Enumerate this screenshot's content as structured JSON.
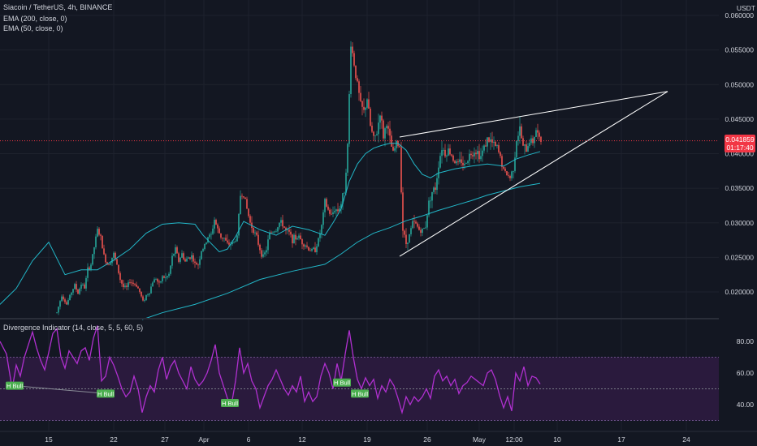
{
  "header": {
    "symbol_line": "Siacoin / TetherUS, 4h, BINANCE",
    "ema200_label": "EMA (200, close, 0)",
    "ema50_label": "EMA (50, close, 0)",
    "currency": "USDT"
  },
  "price_tag": {
    "value": "0.041859",
    "countdown": "01:17:40"
  },
  "oscillator": {
    "label": "Divergence Indicator (14, close, 5, 5, 60, 5)",
    "levels": [
      "80.00",
      "60.00",
      "40.00"
    ],
    "band": [
      30,
      70
    ],
    "mid_line": 50,
    "signal_text": "H Bull"
  },
  "colors": {
    "background": "#131722",
    "up": "#26a69a",
    "down": "#ef5350",
    "ema": "#22b7c8",
    "oscillator": "#b030d0",
    "band_fill": "#2a1a3d",
    "bull_label": "#4caf50",
    "trendline": "#ffffff",
    "price_tag": "#f23645"
  },
  "chart_data": {
    "type": "candlestick",
    "pair": "Siacoin / TetherUS",
    "interval": "4h",
    "exchange": "BINANCE",
    "x_ticks": [
      "15",
      "22",
      "27",
      "Apr",
      "6",
      "12",
      "19",
      "26",
      "May",
      "12:00",
      "10",
      "17",
      "24"
    ],
    "y_ticks": [
      "0.060000",
      "0.055000",
      "0.050000",
      "0.045000",
      "0.040000",
      "0.035000",
      "0.030000",
      "0.025000",
      "0.020000"
    ],
    "y_range": [
      0.0165,
      0.0625
    ],
    "current_price": 0.041859,
    "ema50": [
      [
        0,
        0.0182
      ],
      [
        20,
        0.0205
      ],
      [
        40,
        0.0245
      ],
      [
        60,
        0.0272
      ],
      [
        80,
        0.0225
      ],
      [
        100,
        0.0232
      ],
      [
        120,
        0.0232
      ],
      [
        140,
        0.0246
      ],
      [
        160,
        0.0262
      ],
      [
        180,
        0.0285
      ],
      [
        200,
        0.0298
      ],
      [
        220,
        0.03
      ],
      [
        240,
        0.0298
      ],
      [
        250,
        0.0282
      ],
      [
        260,
        0.027
      ],
      [
        270,
        0.0258
      ],
      [
        280,
        0.0262
      ],
      [
        290,
        0.028
      ],
      [
        300,
        0.0302
      ],
      [
        320,
        0.029
      ],
      [
        340,
        0.0282
      ],
      [
        360,
        0.0295
      ],
      [
        380,
        0.029
      ],
      [
        400,
        0.0282
      ],
      [
        410,
        0.03
      ],
      [
        420,
        0.032
      ],
      [
        430,
        0.036
      ],
      [
        440,
        0.0385
      ],
      [
        450,
        0.04
      ],
      [
        460,
        0.0408
      ],
      [
        470,
        0.0412
      ],
      [
        480,
        0.0415
      ],
      [
        490,
        0.0415
      ],
      [
        500,
        0.0405
      ],
      [
        510,
        0.0385
      ],
      [
        520,
        0.037
      ],
      [
        530,
        0.0365
      ],
      [
        540,
        0.0372
      ],
      [
        560,
        0.0378
      ],
      [
        580,
        0.0382
      ],
      [
        600,
        0.0385
      ],
      [
        620,
        0.0382
      ],
      [
        635,
        0.0392
      ],
      [
        650,
        0.0398
      ],
      [
        665,
        0.0403
      ]
    ],
    "ema200": [
      [
        175,
        0.016
      ],
      [
        200,
        0.017
      ],
      [
        240,
        0.0182
      ],
      [
        280,
        0.0198
      ],
      [
        320,
        0.0218
      ],
      [
        360,
        0.023
      ],
      [
        400,
        0.024
      ],
      [
        420,
        0.0255
      ],
      [
        440,
        0.0272
      ],
      [
        460,
        0.0285
      ],
      [
        480,
        0.0293
      ],
      [
        500,
        0.0303
      ],
      [
        520,
        0.031
      ],
      [
        540,
        0.0318
      ],
      [
        560,
        0.0325
      ],
      [
        580,
        0.0332
      ],
      [
        600,
        0.034
      ],
      [
        620,
        0.0346
      ],
      [
        640,
        0.0352
      ],
      [
        665,
        0.0357
      ]
    ],
    "trendlines": [
      {
        "from": [
          492,
          0.0424
        ],
        "to": [
          822,
          0.049
        ]
      },
      {
        "from": [
          492,
          0.02515
        ],
        "to": [
          822,
          0.049
        ]
      }
    ],
    "divergence_series": [
      [
        0,
        80
      ],
      [
        8,
        72
      ],
      [
        15,
        50
      ],
      [
        20,
        65
      ],
      [
        25,
        58
      ],
      [
        30,
        70
      ],
      [
        35,
        78
      ],
      [
        40,
        86
      ],
      [
        45,
        76
      ],
      [
        50,
        68
      ],
      [
        55,
        62
      ],
      [
        60,
        73
      ],
      [
        65,
        85
      ],
      [
        70,
        88
      ],
      [
        75,
        70
      ],
      [
        80,
        63
      ],
      [
        85,
        74
      ],
      [
        90,
        70
      ],
      [
        95,
        66
      ],
      [
        100,
        74
      ],
      [
        105,
        76
      ],
      [
        110,
        68
      ],
      [
        115,
        82
      ],
      [
        120,
        90
      ],
      [
        125,
        55
      ],
      [
        130,
        58
      ],
      [
        135,
        70
      ],
      [
        140,
        65
      ],
      [
        145,
        58
      ],
      [
        150,
        50
      ],
      [
        155,
        45
      ],
      [
        160,
        48
      ],
      [
        165,
        58
      ],
      [
        170,
        50
      ],
      [
        175,
        35
      ],
      [
        180,
        45
      ],
      [
        185,
        52
      ],
      [
        190,
        48
      ],
      [
        195,
        62
      ],
      [
        200,
        70
      ],
      [
        205,
        56
      ],
      [
        210,
        64
      ],
      [
        215,
        68
      ],
      [
        220,
        60
      ],
      [
        225,
        55
      ],
      [
        230,
        50
      ],
      [
        235,
        64
      ],
      [
        240,
        56
      ],
      [
        245,
        52
      ],
      [
        250,
        55
      ],
      [
        255,
        60
      ],
      [
        260,
        68
      ],
      [
        265,
        78
      ],
      [
        270,
        60
      ],
      [
        275,
        52
      ],
      [
        280,
        44
      ],
      [
        285,
        40
      ],
      [
        290,
        55
      ],
      [
        295,
        76
      ],
      [
        300,
        60
      ],
      [
        305,
        66
      ],
      [
        310,
        55
      ],
      [
        315,
        50
      ],
      [
        320,
        38
      ],
      [
        325,
        45
      ],
      [
        330,
        52
      ],
      [
        335,
        56
      ],
      [
        340,
        62
      ],
      [
        345,
        56
      ],
      [
        350,
        50
      ],
      [
        355,
        46
      ],
      [
        360,
        52
      ],
      [
        365,
        48
      ],
      [
        370,
        58
      ],
      [
        375,
        42
      ],
      [
        380,
        48
      ],
      [
        385,
        42
      ],
      [
        390,
        45
      ],
      [
        395,
        58
      ],
      [
        400,
        66
      ],
      [
        405,
        60
      ],
      [
        410,
        50
      ],
      [
        415,
        66
      ],
      [
        420,
        55
      ],
      [
        425,
        72
      ],
      [
        430,
        87
      ],
      [
        435,
        70
      ],
      [
        440,
        56
      ],
      [
        445,
        50
      ],
      [
        450,
        57
      ],
      [
        455,
        52
      ],
      [
        460,
        56
      ],
      [
        465,
        44
      ],
      [
        470,
        52
      ],
      [
        475,
        48
      ],
      [
        480,
        56
      ],
      [
        485,
        52
      ],
      [
        490,
        44
      ],
      [
        495,
        35
      ],
      [
        500,
        45
      ],
      [
        505,
        40
      ],
      [
        510,
        45
      ],
      [
        515,
        42
      ],
      [
        520,
        45
      ],
      [
        525,
        50
      ],
      [
        530,
        44
      ],
      [
        535,
        58
      ],
      [
        540,
        62
      ],
      [
        545,
        55
      ],
      [
        550,
        58
      ],
      [
        555,
        52
      ],
      [
        560,
        56
      ],
      [
        565,
        47
      ],
      [
        570,
        52
      ],
      [
        575,
        54
      ],
      [
        580,
        58
      ],
      [
        585,
        56
      ],
      [
        590,
        54
      ],
      [
        595,
        52
      ],
      [
        600,
        60
      ],
      [
        605,
        62
      ],
      [
        610,
        56
      ],
      [
        615,
        46
      ],
      [
        620,
        38
      ],
      [
        625,
        45
      ],
      [
        630,
        36
      ],
      [
        635,
        60
      ],
      [
        640,
        55
      ],
      [
        645,
        64
      ],
      [
        650,
        52
      ],
      [
        655,
        58
      ],
      [
        660,
        57
      ],
      [
        665,
        53
      ]
    ],
    "signals": [
      {
        "label": "H Bull",
        "x": 18,
        "value": 52
      },
      {
        "label": "H Bull",
        "x": 130,
        "value": 47
      },
      {
        "label": "H Bull",
        "x": 283,
        "value": 41
      },
      {
        "label": "H Bull",
        "x": 421,
        "value": 54
      },
      {
        "label": "H Bull",
        "x": 443,
        "value": 47
      }
    ],
    "bull_divergence_lines": [
      {
        "from": [
          18,
          52
        ],
        "to": [
          130,
          47
        ]
      }
    ],
    "price_path": [
      [
        70,
        0.017
      ],
      [
        76,
        0.0196
      ],
      [
        82,
        0.0182
      ],
      [
        88,
        0.02
      ],
      [
        92,
        0.021
      ],
      [
        96,
        0.0198
      ],
      [
        100,
        0.0212
      ],
      [
        104,
        0.0206
      ],
      [
        108,
        0.0232
      ],
      [
        112,
        0.024
      ],
      [
        116,
        0.0265
      ],
      [
        120,
        0.029
      ],
      [
        124,
        0.0278
      ],
      [
        128,
        0.0252
      ],
      [
        132,
        0.024
      ],
      [
        136,
        0.0245
      ],
      [
        140,
        0.0255
      ],
      [
        144,
        0.0238
      ],
      [
        148,
        0.0218
      ],
      [
        152,
        0.0207
      ],
      [
        156,
        0.0206
      ],
      [
        160,
        0.0216
      ],
      [
        164,
        0.0212
      ],
      [
        168,
        0.021
      ],
      [
        172,
        0.02
      ],
      [
        176,
        0.0186
      ],
      [
        180,
        0.0195
      ],
      [
        184,
        0.02
      ],
      [
        188,
        0.0215
      ],
      [
        192,
        0.022
      ],
      [
        196,
        0.021
      ],
      [
        200,
        0.0222
      ],
      [
        204,
        0.022
      ],
      [
        208,
        0.0225
      ],
      [
        212,
        0.025
      ],
      [
        216,
        0.0262
      ],
      [
        220,
        0.0245
      ],
      [
        224,
        0.0255
      ],
      [
        228,
        0.0244
      ],
      [
        232,
        0.025
      ],
      [
        236,
        0.0252
      ],
      [
        240,
        0.024
      ],
      [
        244,
        0.024
      ],
      [
        248,
        0.026
      ],
      [
        252,
        0.0266
      ],
      [
        256,
        0.028
      ],
      [
        260,
        0.0282
      ],
      [
        264,
        0.0305
      ],
      [
        268,
        0.029
      ],
      [
        272,
        0.028
      ],
      [
        276,
        0.0278
      ],
      [
        280,
        0.0268
      ],
      [
        284,
        0.027
      ],
      [
        288,
        0.0272
      ],
      [
        292,
        0.028
      ],
      [
        296,
        0.034
      ],
      [
        300,
        0.0342
      ],
      [
        304,
        0.032
      ],
      [
        308,
        0.03
      ],
      [
        312,
        0.029
      ],
      [
        316,
        0.0278
      ],
      [
        320,
        0.0262
      ],
      [
        324,
        0.025
      ],
      [
        328,
        0.0262
      ],
      [
        332,
        0.0285
      ],
      [
        336,
        0.0288
      ],
      [
        340,
        0.029
      ],
      [
        344,
        0.03
      ],
      [
        348,
        0.0298
      ],
      [
        352,
        0.0288
      ],
      [
        356,
        0.0285
      ],
      [
        360,
        0.0276
      ],
      [
        364,
        0.0278
      ],
      [
        368,
        0.028
      ],
      [
        372,
        0.0272
      ],
      [
        376,
        0.0268
      ],
      [
        380,
        0.0262
      ],
      [
        384,
        0.026
      ],
      [
        388,
        0.0262
      ],
      [
        392,
        0.0275
      ],
      [
        396,
        0.0295
      ],
      [
        400,
        0.033
      ],
      [
        404,
        0.0318
      ],
      [
        408,
        0.031
      ],
      [
        412,
        0.032
      ],
      [
        416,
        0.0318
      ],
      [
        420,
        0.0328
      ],
      [
        424,
        0.0348
      ],
      [
        428,
        0.041
      ],
      [
        432,
        0.056
      ],
      [
        436,
        0.053
      ],
      [
        440,
        0.05
      ],
      [
        444,
        0.047
      ],
      [
        448,
        0.046
      ],
      [
        452,
        0.048
      ],
      [
        456,
        0.044
      ],
      [
        460,
        0.042
      ],
      [
        464,
        0.043
      ],
      [
        468,
        0.046
      ],
      [
        472,
        0.0425
      ],
      [
        476,
        0.0445
      ],
      [
        480,
        0.042
      ],
      [
        484,
        0.04
      ],
      [
        488,
        0.0415
      ],
      [
        492,
        0.041
      ],
      [
        496,
        0.029
      ],
      [
        500,
        0.027
      ],
      [
        504,
        0.0282
      ],
      [
        508,
        0.03
      ],
      [
        512,
        0.0298
      ],
      [
        516,
        0.029
      ],
      [
        520,
        0.0288
      ],
      [
        524,
        0.0296
      ],
      [
        528,
        0.033
      ],
      [
        532,
        0.0345
      ],
      [
        536,
        0.035
      ],
      [
        540,
        0.0385
      ],
      [
        544,
        0.041
      ],
      [
        548,
        0.04
      ],
      [
        552,
        0.0405
      ],
      [
        556,
        0.0398
      ],
      [
        560,
        0.0388
      ],
      [
        564,
        0.0385
      ],
      [
        568,
        0.039
      ],
      [
        572,
        0.0382
      ],
      [
        576,
        0.0395
      ],
      [
        580,
        0.04
      ],
      [
        584,
        0.0405
      ],
      [
        588,
        0.0402
      ],
      [
        592,
        0.0396
      ],
      [
        596,
        0.041
      ],
      [
        600,
        0.042
      ],
      [
        604,
        0.0418
      ],
      [
        608,
        0.0412
      ],
      [
        612,
        0.0408
      ],
      [
        616,
        0.0395
      ],
      [
        620,
        0.0375
      ],
      [
        624,
        0.037
      ],
      [
        628,
        0.0365
      ],
      [
        632,
        0.038
      ],
      [
        636,
        0.042
      ],
      [
        640,
        0.0435
      ],
      [
        644,
        0.041
      ],
      [
        648,
        0.0405
      ],
      [
        652,
        0.042
      ],
      [
        656,
        0.0418
      ],
      [
        660,
        0.0435
      ],
      [
        664,
        0.042
      ],
      [
        667,
        0.0418
      ]
    ]
  }
}
